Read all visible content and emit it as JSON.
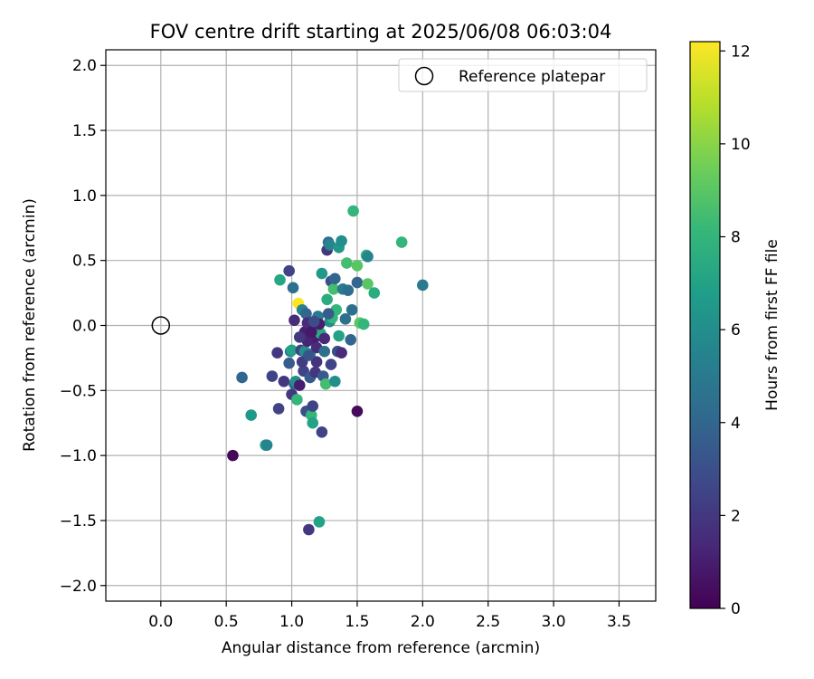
{
  "chart_data": {
    "type": "scatter",
    "title": "FOV centre drift starting at 2025/06/08 06:03:04",
    "xlabel": "Angular distance from reference (arcmin)",
    "ylabel": "Rotation from reference (arcmin)",
    "xlim": [
      -0.42,
      3.78
    ],
    "ylim": [
      -2.12,
      2.12
    ],
    "xticks": [
      0.0,
      0.5,
      1.0,
      1.5,
      2.0,
      2.5,
      3.0,
      3.5
    ],
    "xtick_labels": [
      "0.0",
      "0.5",
      "1.0",
      "1.5",
      "2.0",
      "2.5",
      "3.0",
      "3.5"
    ],
    "yticks": [
      -2.0,
      -1.5,
      -1.0,
      -0.5,
      0.0,
      0.5,
      1.0,
      1.5,
      2.0
    ],
    "ytick_labels": [
      "−2.0",
      "−1.5",
      "−1.0",
      "−0.5",
      "0.0",
      "0.5",
      "1.0",
      "1.5",
      "2.0"
    ],
    "grid": true,
    "legend": {
      "placement": "upper right",
      "entries": [
        "Reference platepar"
      ]
    },
    "reference_point": {
      "x": 0.0,
      "y": 0.0,
      "label": "Reference platepar",
      "marker": "open-circle"
    },
    "colorbar": {
      "label": "Hours from first FF file",
      "min": 0,
      "max": 12.2,
      "ticks": [
        0,
        2,
        4,
        6,
        8,
        10,
        12
      ],
      "tick_labels": [
        "0",
        "2",
        "4",
        "6",
        "8",
        "10",
        "12"
      ],
      "colormap": "viridis",
      "colormap_stops": [
        "#440154",
        "#482878",
        "#3e4989",
        "#31688e",
        "#26828e",
        "#1f9e89",
        "#35b779",
        "#6ece58",
        "#b5de2b",
        "#fde725"
      ]
    },
    "points": [
      {
        "x": 0.55,
        "y": -1.0,
        "c": 0.2
      },
      {
        "x": 0.62,
        "y": -0.4,
        "c": 4.0
      },
      {
        "x": 0.69,
        "y": -0.69,
        "c": 6.5
      },
      {
        "x": 0.8,
        "y": -0.92,
        "c": 7.5
      },
      {
        "x": 0.81,
        "y": -0.92,
        "c": 5.5
      },
      {
        "x": 0.85,
        "y": -0.39,
        "c": 2.5
      },
      {
        "x": 0.89,
        "y": -0.21,
        "c": 2.0
      },
      {
        "x": 0.9,
        "y": -0.64,
        "c": 2.5
      },
      {
        "x": 0.91,
        "y": 0.35,
        "c": 7.2
      },
      {
        "x": 0.94,
        "y": -0.43,
        "c": 2.0
      },
      {
        "x": 0.98,
        "y": 0.42,
        "c": 2.5
      },
      {
        "x": 0.98,
        "y": -0.29,
        "c": 3.5
      },
      {
        "x": 0.99,
        "y": -0.2,
        "c": 5.0
      },
      {
        "x": 1.0,
        "y": -0.19,
        "c": 7.0
      },
      {
        "x": 1.0,
        "y": -0.53,
        "c": 2.0
      },
      {
        "x": 1.01,
        "y": 0.29,
        "c": 4.5
      },
      {
        "x": 1.02,
        "y": 0.04,
        "c": 1.5
      },
      {
        "x": 1.02,
        "y": -0.45,
        "c": 4.0
      },
      {
        "x": 1.03,
        "y": -0.43,
        "c": 6.0
      },
      {
        "x": 1.04,
        "y": -0.57,
        "c": 8.0
      },
      {
        "x": 1.05,
        "y": 0.17,
        "c": 12.2
      },
      {
        "x": 1.06,
        "y": -0.46,
        "c": 1.0
      },
      {
        "x": 1.07,
        "y": -0.19,
        "c": 2.5
      },
      {
        "x": 1.08,
        "y": 0.12,
        "c": 5.5
      },
      {
        "x": 1.09,
        "y": -0.35,
        "c": 2.5
      },
      {
        "x": 1.1,
        "y": -0.05,
        "c": 1.0
      },
      {
        "x": 1.1,
        "y": -0.2,
        "c": 6.0
      },
      {
        "x": 1.11,
        "y": -0.66,
        "c": 3.0
      },
      {
        "x": 1.11,
        "y": 0.09,
        "c": 4.0
      },
      {
        "x": 1.12,
        "y": 0.02,
        "c": 1.5
      },
      {
        "x": 1.13,
        "y": -1.57,
        "c": 2.0
      },
      {
        "x": 1.14,
        "y": -0.22,
        "c": 6.5
      },
      {
        "x": 1.14,
        "y": -0.4,
        "c": 3.5
      },
      {
        "x": 1.15,
        "y": -0.69,
        "c": 8.0
      },
      {
        "x": 1.16,
        "y": -0.62,
        "c": 2.5
      },
      {
        "x": 1.16,
        "y": -0.75,
        "c": 7.0
      },
      {
        "x": 1.17,
        "y": -0.1,
        "c": 1.0
      },
      {
        "x": 1.18,
        "y": -0.36,
        "c": 2.0
      },
      {
        "x": 1.19,
        "y": -0.17,
        "c": 1.5
      },
      {
        "x": 1.2,
        "y": 0.07,
        "c": 5.0
      },
      {
        "x": 1.21,
        "y": -1.51,
        "c": 7.0
      },
      {
        "x": 1.22,
        "y": -0.06,
        "c": 7.5
      },
      {
        "x": 1.23,
        "y": 0.4,
        "c": 6.5
      },
      {
        "x": 1.23,
        "y": -0.82,
        "c": 2.5
      },
      {
        "x": 1.24,
        "y": -0.39,
        "c": 3.5
      },
      {
        "x": 1.25,
        "y": -0.2,
        "c": 4.5
      },
      {
        "x": 1.26,
        "y": -0.45,
        "c": 8.5
      },
      {
        "x": 1.27,
        "y": 0.58,
        "c": 2.0
      },
      {
        "x": 1.27,
        "y": 0.2,
        "c": 7.5
      },
      {
        "x": 1.28,
        "y": 0.64,
        "c": 4.5
      },
      {
        "x": 1.29,
        "y": 0.62,
        "c": 5.5
      },
      {
        "x": 1.29,
        "y": 0.03,
        "c": 6.0
      },
      {
        "x": 1.3,
        "y": -0.3,
        "c": 2.5
      },
      {
        "x": 1.3,
        "y": 0.34,
        "c": 3.0
      },
      {
        "x": 1.31,
        "y": 0.06,
        "c": 8.0
      },
      {
        "x": 1.32,
        "y": 0.28,
        "c": 8.5
      },
      {
        "x": 1.33,
        "y": -0.43,
        "c": 6.0
      },
      {
        "x": 1.33,
        "y": 0.36,
        "c": 4.0
      },
      {
        "x": 1.34,
        "y": 0.12,
        "c": 8.0
      },
      {
        "x": 1.35,
        "y": -0.2,
        "c": 3.0
      },
      {
        "x": 1.36,
        "y": 0.6,
        "c": 6.5
      },
      {
        "x": 1.36,
        "y": -0.08,
        "c": 7.0
      },
      {
        "x": 1.38,
        "y": 0.65,
        "c": 6.0
      },
      {
        "x": 1.38,
        "y": -0.21,
        "c": 1.5
      },
      {
        "x": 1.39,
        "y": 0.28,
        "c": 5.0
      },
      {
        "x": 1.41,
        "y": 0.05,
        "c": 4.5
      },
      {
        "x": 1.42,
        "y": 0.48,
        "c": 8.5
      },
      {
        "x": 1.43,
        "y": 0.27,
        "c": 4.5
      },
      {
        "x": 1.45,
        "y": -0.11,
        "c": 4.0
      },
      {
        "x": 1.46,
        "y": 0.12,
        "c": 4.5
      },
      {
        "x": 1.47,
        "y": 0.88,
        "c": 8.0
      },
      {
        "x": 1.5,
        "y": -0.66,
        "c": 0.3
      },
      {
        "x": 1.5,
        "y": 0.46,
        "c": 9.0
      },
      {
        "x": 1.5,
        "y": 0.33,
        "c": 4.0
      },
      {
        "x": 1.52,
        "y": 0.02,
        "c": 9.0
      },
      {
        "x": 1.55,
        "y": 0.01,
        "c": 8.0
      },
      {
        "x": 1.57,
        "y": 0.54,
        "c": 8.0
      },
      {
        "x": 1.58,
        "y": 0.53,
        "c": 5.5
      },
      {
        "x": 1.58,
        "y": 0.32,
        "c": 9.0
      },
      {
        "x": 1.63,
        "y": 0.25,
        "c": 7.5
      },
      {
        "x": 1.84,
        "y": 0.64,
        "c": 8.0
      },
      {
        "x": 2.0,
        "y": 0.31,
        "c": 5.0
      },
      {
        "x": 1.12,
        "y": -0.12,
        "c": 1.2
      },
      {
        "x": 1.15,
        "y": -0.05,
        "c": 0.8
      },
      {
        "x": 1.19,
        "y": -0.28,
        "c": 1.8
      },
      {
        "x": 1.08,
        "y": -0.28,
        "c": 2.2
      },
      {
        "x": 1.21,
        "y": 0.01,
        "c": 1.0
      },
      {
        "x": 1.25,
        "y": -0.1,
        "c": 1.4
      },
      {
        "x": 1.17,
        "y": 0.03,
        "c": 2.8
      },
      {
        "x": 1.13,
        "y": -0.23,
        "c": 3.2
      },
      {
        "x": 1.06,
        "y": -0.09,
        "c": 2.0
      },
      {
        "x": 1.28,
        "y": 0.09,
        "c": 3.6
      }
    ]
  }
}
